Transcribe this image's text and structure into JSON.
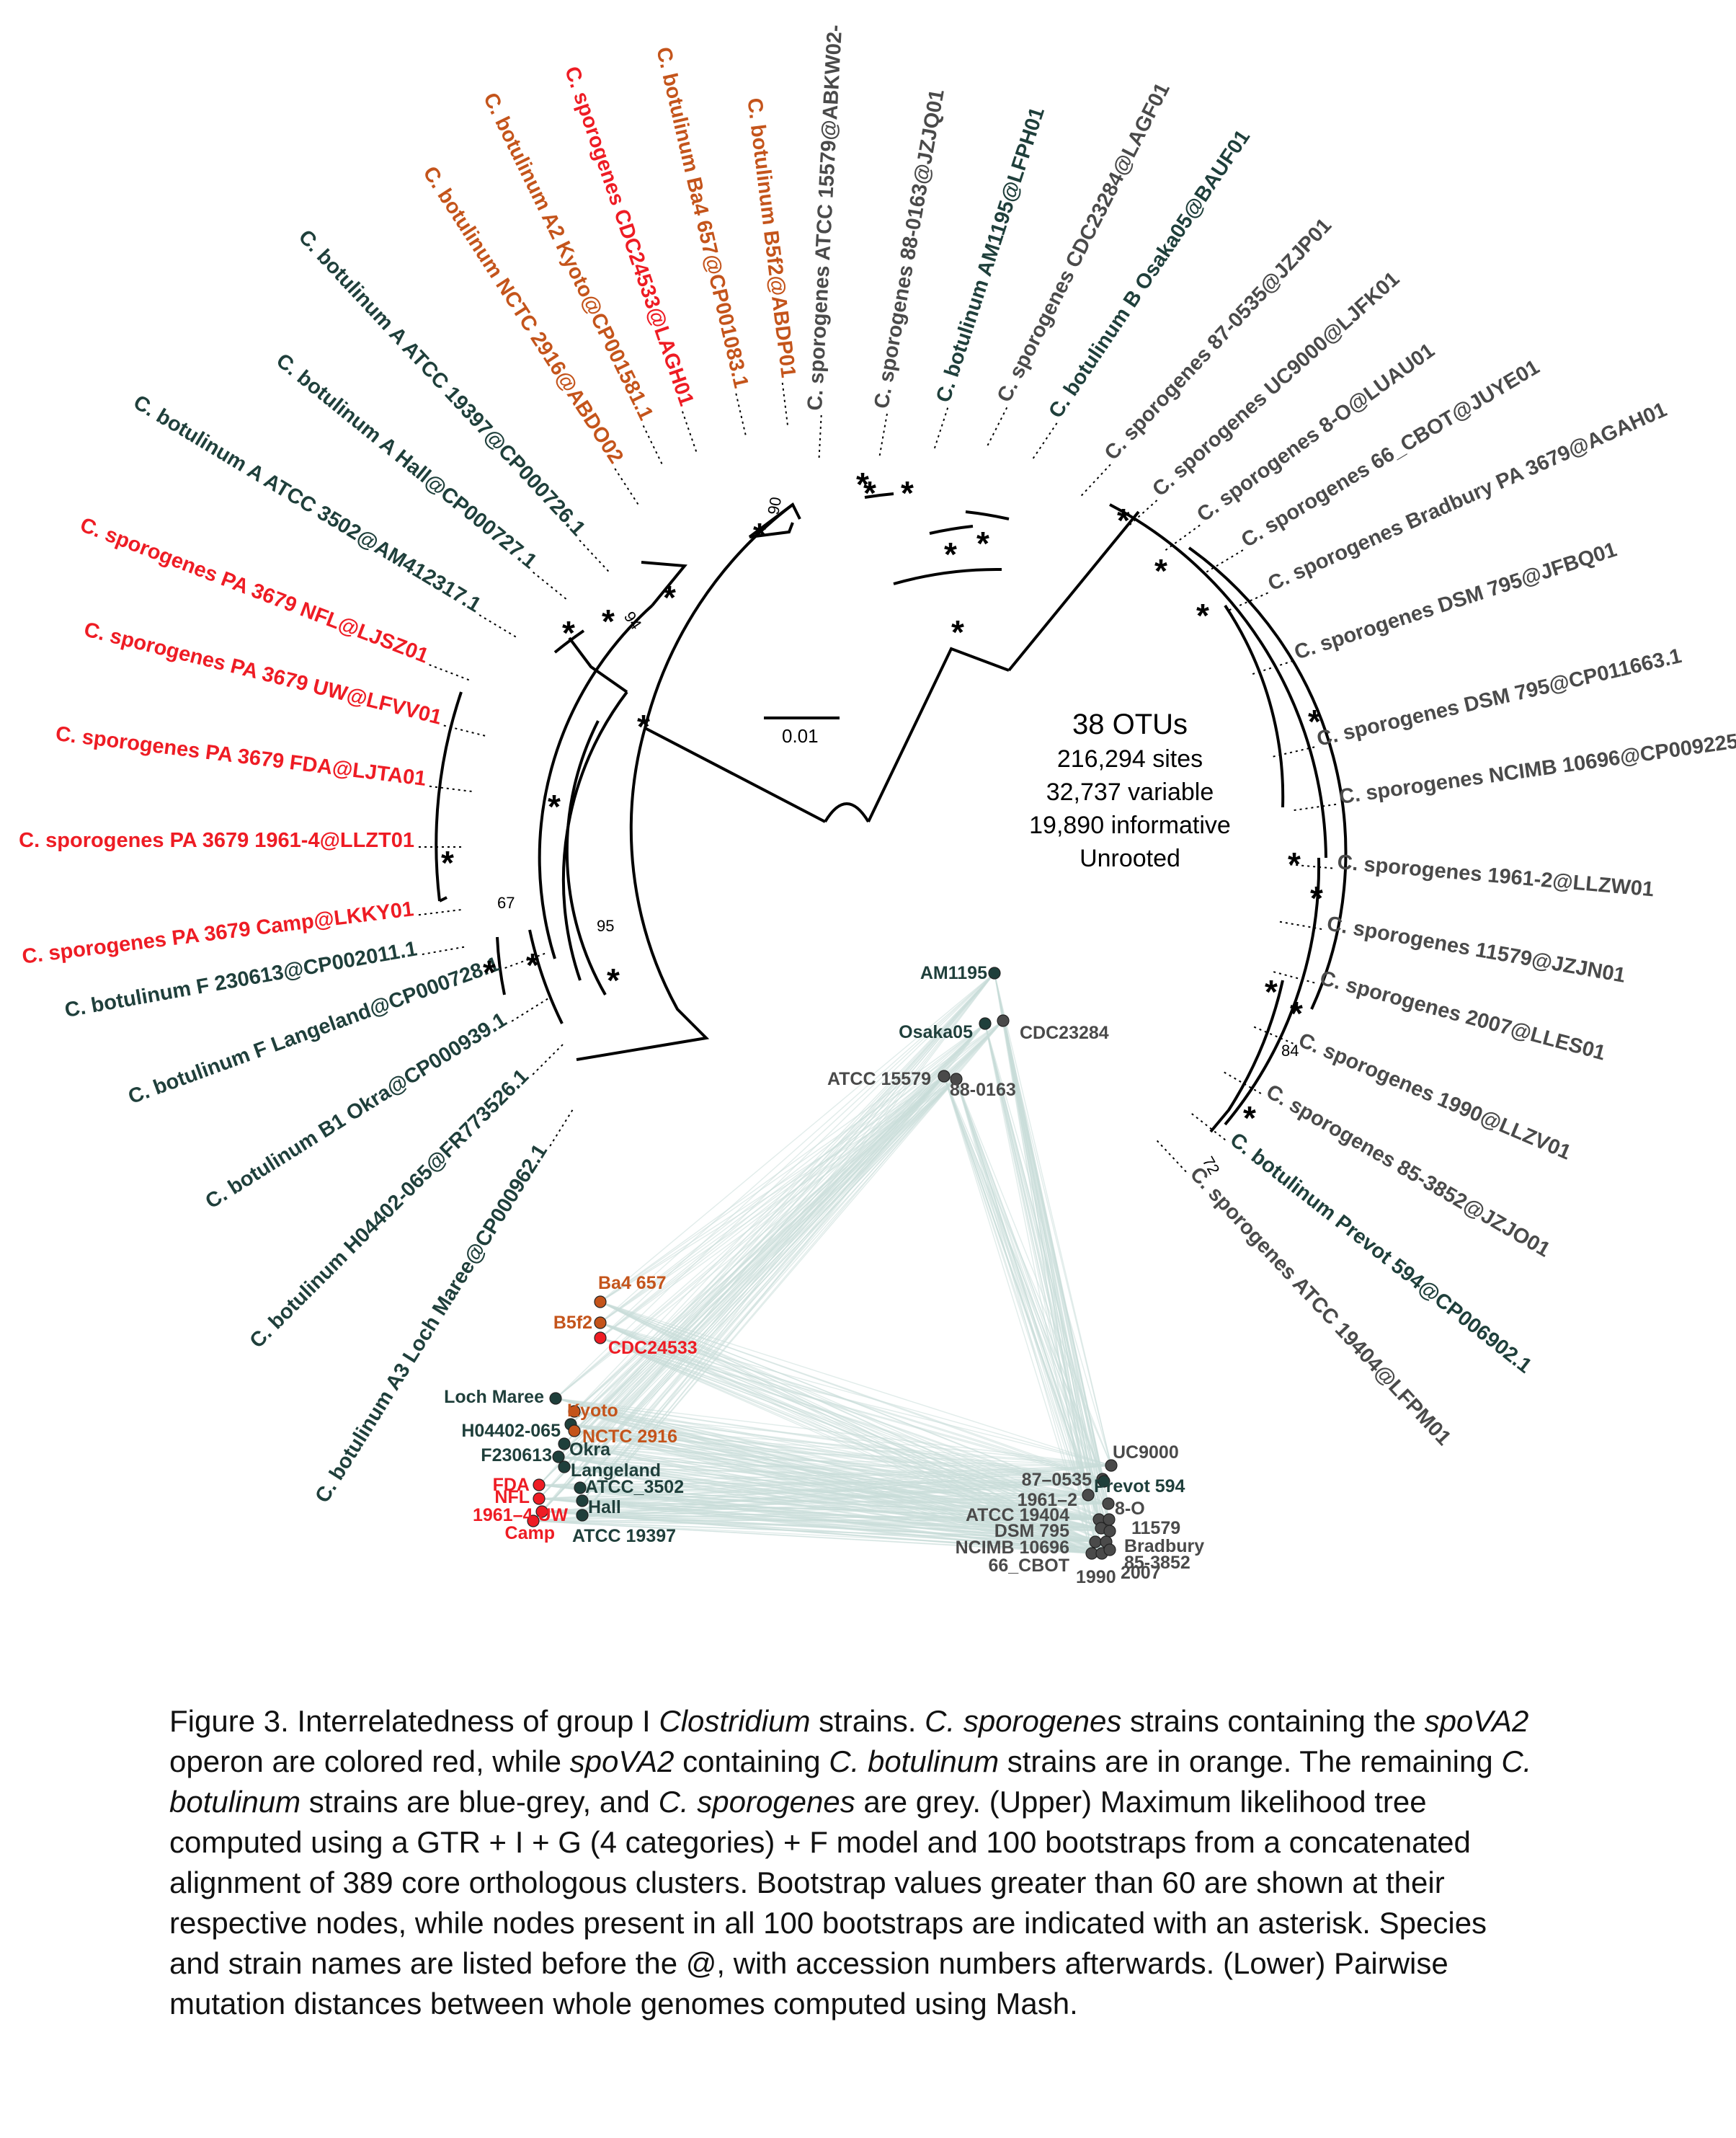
{
  "tree": {
    "tips": [
      {
        "label": "C. sporogenes ATCC 15579@ABKW02-",
        "group": "cs"
      },
      {
        "label": "C. sporogenes 88-0163@JZJQ01",
        "group": "cs"
      },
      {
        "label": "C. botulinum AM1195@LFPH01",
        "group": "cbg"
      },
      {
        "label": "C. sporogenes CDC23284@LAGF01",
        "group": "cs"
      },
      {
        "label": "C. botulinum B Osaka05@BAUF01",
        "group": "cbg"
      },
      {
        "label": "C. sporogenes 87-0535@JZJP01",
        "group": "cs"
      },
      {
        "label": "C. sporogenes UC9000@LJFK01",
        "group": "cs"
      },
      {
        "label": "C. sporogenes 8-O@LUAU01",
        "group": "cs"
      },
      {
        "label": "C. sporogenes 66_CBOT@JUYE01",
        "group": "cs"
      },
      {
        "label": "C. sporogenes Bradbury PA 3679@AGAH01",
        "group": "cs"
      },
      {
        "label": "C. sporogenes DSM 795@JFBQ01",
        "group": "cs"
      },
      {
        "label": "C. sporogenes DSM 795@CP011663.1",
        "group": "cs"
      },
      {
        "label": "C. sporogenes NCIMB 10696@CP009225.1",
        "group": "cs"
      },
      {
        "label": "C. sporogenes 1961-2@LLZW01",
        "group": "cs"
      },
      {
        "label": "C. sporogenes 11579@JZJN01",
        "group": "cs"
      },
      {
        "label": "C. sporogenes 2007@LLES01",
        "group": "cs"
      },
      {
        "label": "C. sporogenes 1990@LLZV01",
        "group": "cs"
      },
      {
        "label": "C. sporogenes 85-3852@JZJO01",
        "group": "cs"
      },
      {
        "label": "C. botulinum Prevot 594@CP006902.1",
        "group": "cbg"
      },
      {
        "label": "C. sporogenes ATCC 19404@LFPM01",
        "group": "cs"
      },
      {
        "label": "C. botulinum A3 Loch Maree@CP000962.1",
        "group": "cbg"
      },
      {
        "label": "C. botulinum H04402-065@FR773526.1",
        "group": "cbg"
      },
      {
        "label": "C. botulinum B1 Okra@CP000939.1",
        "group": "cbg"
      },
      {
        "label": "C. botulinum F Langeland@CP000728.1",
        "group": "cbg"
      },
      {
        "label": "C. botulinum F 230613@CP002011.1",
        "group": "cbg"
      },
      {
        "label": "C. sporogenes PA 3679 Camp@LKKY01",
        "group": "red"
      },
      {
        "label": "C. sporogenes PA 3679 1961-4@LLZT01",
        "group": "red"
      },
      {
        "label": "C. sporogenes PA 3679 FDA@LJTA01",
        "group": "red"
      },
      {
        "label": "C. sporogenes PA 3679 UW@LFVV01",
        "group": "red"
      },
      {
        "label": "C. sporogenes PA 3679 NFL@LJSZ01",
        "group": "red"
      },
      {
        "label": "C. botulinum A ATCC 3502@AM412317.1",
        "group": "cbg"
      },
      {
        "label": "C. botulinum A Hall@CP000727.1",
        "group": "cbg"
      },
      {
        "label": "C. botulinum A ATCC 19397@CP000726.1",
        "group": "cbg"
      },
      {
        "label": "C. botulinum NCTC 2916@ABDO02",
        "group": "ora"
      },
      {
        "label": "C. botulinum A2 Kyoto@CP001581.1",
        "group": "ora"
      },
      {
        "label": "C. sporogenes CDC24533@LAGH01",
        "group": "red"
      },
      {
        "label": "C. botulinum Ba4 657@CP001083.1",
        "group": "ora"
      },
      {
        "label": "C. botulinum B5f2@ABDP01",
        "group": "ora"
      }
    ],
    "bootstrap_labels": [
      "90",
      "94",
      "67",
      "95",
      "84",
      "72"
    ],
    "asterisk": "*",
    "scale_label": "0.01",
    "summary": {
      "otus": "38 OTUs",
      "sites": "216,294 sites",
      "variable": "32,737 variable",
      "informative": "19,890 informative",
      "rooting": "Unrooted"
    }
  },
  "mash_plot": {
    "labels": [
      {
        "text": "AM1195",
        "group": "cbg"
      },
      {
        "text": "Osaka05",
        "group": "cbg"
      },
      {
        "text": "CDC23284",
        "group": "cs"
      },
      {
        "text": "ATCC 15579",
        "group": "cs"
      },
      {
        "text": "88-0163",
        "group": "cs"
      },
      {
        "text": "Ba4 657",
        "group": "ora"
      },
      {
        "text": "B5f2",
        "group": "ora"
      },
      {
        "text": "CDC24533",
        "group": "red"
      },
      {
        "text": "Loch Maree",
        "group": "cbg"
      },
      {
        "text": "Kyoto",
        "group": "ora"
      },
      {
        "text": "H04402-065",
        "group": "cbg"
      },
      {
        "text": "NCTC 2916",
        "group": "ora"
      },
      {
        "text": "Okra",
        "group": "cbg"
      },
      {
        "text": "F230613",
        "group": "cbg"
      },
      {
        "text": "Langeland",
        "group": "cbg"
      },
      {
        "text": "FDA",
        "group": "red"
      },
      {
        "text": "ATCC_3502",
        "group": "cbg"
      },
      {
        "text": "NFL",
        "group": "red"
      },
      {
        "text": "Hall",
        "group": "cbg"
      },
      {
        "text": "1961–4 UW",
        "group": "red"
      },
      {
        "text": "Camp",
        "group": "red"
      },
      {
        "text": "ATCC 19397",
        "group": "cbg"
      },
      {
        "text": "UC9000",
        "group": "cs"
      },
      {
        "text": "87–0535",
        "group": "cs"
      },
      {
        "text": "Prevot 594",
        "group": "cbg"
      },
      {
        "text": "1961–2",
        "group": "cs"
      },
      {
        "text": "8-O",
        "group": "cs"
      },
      {
        "text": "ATCC 19404",
        "group": "cs"
      },
      {
        "text": "11579",
        "group": "cs"
      },
      {
        "text": "DSM 795",
        "group": "cs"
      },
      {
        "text": "Bradbury",
        "group": "cs"
      },
      {
        "text": "NCIMB 10696",
        "group": "cs"
      },
      {
        "text": "85-3852",
        "group": "cs"
      },
      {
        "text": "66_CBOT",
        "group": "cs"
      },
      {
        "text": "1990",
        "group": "cs"
      },
      {
        "text": "2007",
        "group": "cs"
      }
    ]
  },
  "caption": {
    "p1": "Figure 3. Interrelatedness of group I ",
    "i1": "Clostridium",
    "p2": " strains. ",
    "i2": "C. sporogenes",
    "p3": " strains containing the ",
    "i3": "spoVA2",
    "p4": " operon are colored red, while ",
    "i4": "spoVA2",
    "p5": " containing ",
    "i5": "C. botulinum",
    "p6": " strains are in orange. The remaining ",
    "i6": "C. botulinum",
    "p7": " strains are blue-grey, and ",
    "i7": "C. sporogenes",
    "p8": " are grey. (Upper) Maximum likelihood tree computed using a GTR + I + G (4 categories) + F model and 100 bootstraps from a concatenated alignment of 389 core orthologous clusters. Bootstrap values greater than 60 are shown at their respective nodes, while nodes present in all 100 bootstraps are indicated with an asterisk. Species and strain names are listed before the @, with accession numbers afterwards. (Lower) Pairwise mutation distances between whole genomes computed using Mash."
  },
  "colors": {
    "red": "#ee1c24",
    "orange": "#c4541b",
    "blue_grey": "#1f3f3b",
    "grey": "#4a4a4a",
    "mash_edges": "#c9dcd9"
  }
}
